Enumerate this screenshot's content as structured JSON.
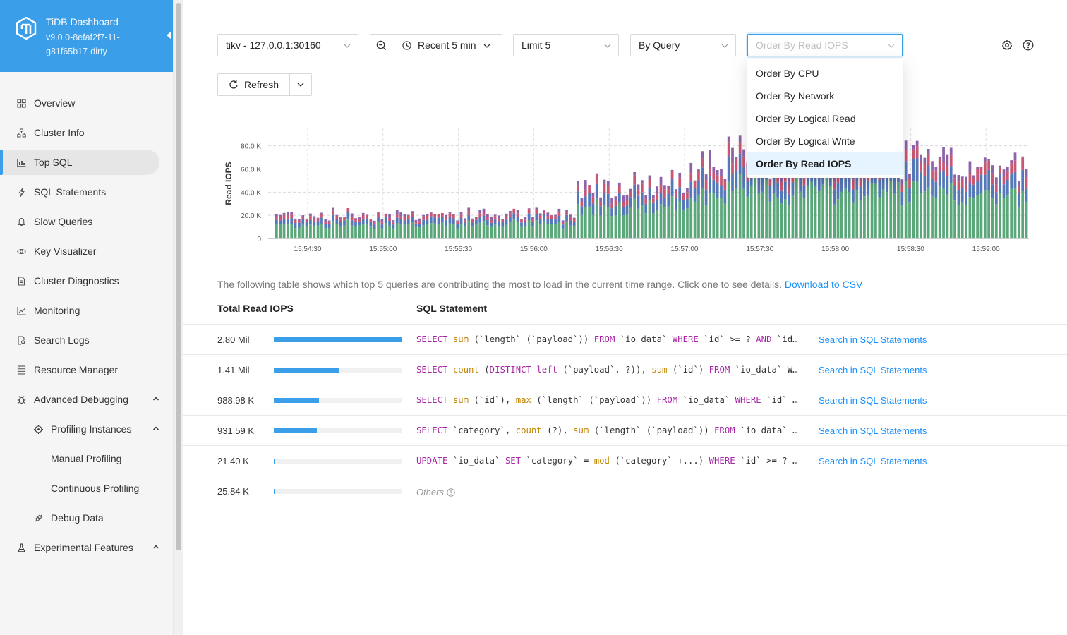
{
  "brand": {
    "name": "TiDB Dashboard",
    "version": "v9.0.0-8efaf2f7-11-g81f65b17-dirty"
  },
  "sidebar": {
    "items": [
      {
        "label": "Overview",
        "icon": "overview-icon"
      },
      {
        "label": "Cluster Info",
        "icon": "cluster-icon"
      },
      {
        "label": "Top SQL",
        "icon": "bar-chart-icon",
        "active": true
      },
      {
        "label": "SQL Statements",
        "icon": "lightning-icon"
      },
      {
        "label": "Slow Queries",
        "icon": "bell-icon"
      },
      {
        "label": "Key Visualizer",
        "icon": "eye-icon"
      },
      {
        "label": "Cluster Diagnostics",
        "icon": "file-icon"
      },
      {
        "label": "Monitoring",
        "icon": "line-chart-icon"
      },
      {
        "label": "Search Logs",
        "icon": "file-search-icon"
      },
      {
        "label": "Resource Manager",
        "icon": "database-icon"
      },
      {
        "label": "Advanced Debugging",
        "icon": "bug-icon",
        "expanded": true
      },
      {
        "label": "Profiling Instances",
        "icon": "aim-icon",
        "expanded": true
      },
      {
        "label": "Manual Profiling"
      },
      {
        "label": "Continuous Profiling"
      },
      {
        "label": "Debug Data",
        "icon": "api-icon"
      },
      {
        "label": "Experimental Features",
        "icon": "experiment-icon",
        "expanded": true
      }
    ]
  },
  "toolbar": {
    "instance": "tikv - 127.0.0.1:30160",
    "time_range": "Recent 5 min",
    "limit": "Limit 5",
    "group_by": "By Query",
    "order_by_placeholder": "Order By Read IOPS",
    "refresh": "Refresh"
  },
  "order_menu": {
    "options": [
      "Order By CPU",
      "Order By Network",
      "Order By Logical Read",
      "Order By Logical Write",
      "Order By Read IOPS"
    ],
    "selected": "Order By Read IOPS"
  },
  "chart_data": {
    "type": "bar",
    "stacked": true,
    "ylabel": "Read IOPS",
    "ylim": [
      0,
      95000
    ],
    "yticks": [
      "0",
      "20.0 K",
      "40.0 K",
      "60.0 K",
      "80.0 K"
    ],
    "ytick_values": [
      0,
      20000,
      40000,
      60000,
      80000
    ],
    "xticks": [
      "15:54:30",
      "15:55:00",
      "15:55:30",
      "15:56:00",
      "15:56:30",
      "15:57:00",
      "15:57:30",
      "15:58:00",
      "15:58:30",
      "15:59:00"
    ],
    "grid": true,
    "colors": [
      "#5aa77a",
      "#5579b8",
      "#c85774",
      "#8e63a8"
    ],
    "series_count": 4
  },
  "description": {
    "text": "The following table shows which top 5 queries are contributing the most to load in the current time range. Click one to see details.",
    "link": "Download to CSV"
  },
  "table": {
    "headers": {
      "read_iops": "Total Read IOPS",
      "sql": "SQL Statement"
    },
    "search_label": "Search in SQL Statements",
    "rows": [
      {
        "value": "2.80 Mil",
        "fraction": 1.0,
        "sql": [
          [
            "kw",
            "SELECT "
          ],
          [
            "fn",
            "sum"
          ],
          [
            "t",
            " (`length` (`payload`)) "
          ],
          [
            "kw",
            "FROM"
          ],
          [
            "t",
            " `io_data` "
          ],
          [
            "kw",
            "WHERE"
          ],
          [
            "t",
            " `id` >= ? "
          ],
          [
            "kw",
            "AND"
          ],
          [
            "t",
            " `id` <= ?"
          ]
        ]
      },
      {
        "value": "1.41 Mil",
        "fraction": 0.503,
        "sql": [
          [
            "kw",
            "SELECT "
          ],
          [
            "fn",
            "count"
          ],
          [
            "t",
            " ("
          ],
          [
            "kw",
            "DISTINCT"
          ],
          [
            "t",
            " "
          ],
          [
            "kw",
            "left"
          ],
          [
            "t",
            " (`payload`, ?)), "
          ],
          [
            "fn",
            "sum"
          ],
          [
            "t",
            " (`id`) "
          ],
          [
            "kw",
            "FROM"
          ],
          [
            "t",
            " `io_data` WHERE"
          ]
        ]
      },
      {
        "value": "988.98 K",
        "fraction": 0.353,
        "sql": [
          [
            "kw",
            "SELECT "
          ],
          [
            "fn",
            "sum"
          ],
          [
            "t",
            " (`id`), "
          ],
          [
            "fn",
            "max"
          ],
          [
            "t",
            " (`length` (`payload`)) "
          ],
          [
            "kw",
            "FROM"
          ],
          [
            "t",
            " `io_data` "
          ],
          [
            "kw",
            "WHERE"
          ],
          [
            "t",
            " `id` >= ?"
          ]
        ]
      },
      {
        "value": "931.59 K",
        "fraction": 0.333,
        "sql": [
          [
            "kw",
            "SELECT"
          ],
          [
            "t",
            " `category`, "
          ],
          [
            "fn",
            "count"
          ],
          [
            "t",
            " (?), "
          ],
          [
            "fn",
            "sum"
          ],
          [
            "t",
            " (`length` (`payload`)) "
          ],
          [
            "kw",
            "FROM"
          ],
          [
            "t",
            " `io_data` GROUP"
          ]
        ]
      },
      {
        "value": "21.40 K",
        "fraction": 0.008,
        "sql": [
          [
            "kw",
            "UPDATE"
          ],
          [
            "t",
            " `io_data` "
          ],
          [
            "kw",
            "SET"
          ],
          [
            "t",
            " `category` = "
          ],
          [
            "fn",
            "mod"
          ],
          [
            "t",
            " (`category` +...) "
          ],
          [
            "kw",
            "WHERE"
          ],
          [
            "t",
            " `id` >= ? AND"
          ]
        ]
      }
    ],
    "others": {
      "value": "25.84 K",
      "fraction": 0.009,
      "label": "Others"
    }
  }
}
